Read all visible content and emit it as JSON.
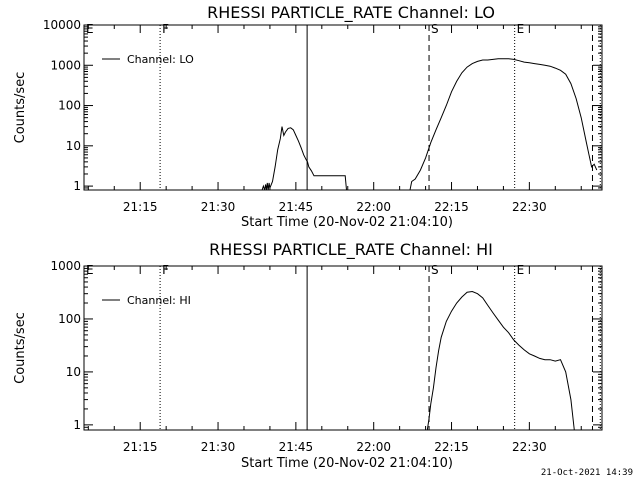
{
  "timestamp": "21-Oct-2021 14:39",
  "chart_data": [
    {
      "type": "line",
      "title": "RHESSI PARTICLE_RATE Channel: LO",
      "xlabel": "Start Time (20-Nov-02 21:04:10)",
      "ylabel": "Counts/sec",
      "yscale": "log",
      "xlim": [
        "21:04:10",
        "22:44:00"
      ],
      "ylim": [
        0.8,
        10000
      ],
      "x_ticks": [
        "21:15",
        "21:30",
        "21:45",
        "22:00",
        "22:15",
        "22:30"
      ],
      "y_ticks": [
        "1",
        "10",
        "100",
        "1000",
        "10000"
      ],
      "legend": {
        "position": "top-left",
        "entries": [
          "Channel: LO"
        ]
      },
      "series": [
        {
          "name": "Channel: LO",
          "segments": [
            [
              [
                "21:38:30",
                0.8
              ],
              [
                "21:38:45",
                1
              ],
              [
                "21:39:00",
                0.8
              ],
              [
                "21:39:10",
                1.1
              ],
              [
                "21:39:20",
                0.8
              ],
              [
                "21:39:30",
                1.2
              ],
              [
                "21:39:40",
                0.8
              ],
              [
                "21:39:50",
                1.2
              ],
              [
                "21:40:00",
                0.9
              ],
              [
                "21:40:30",
                1.3
              ],
              [
                "21:41:00",
                3
              ],
              [
                "21:41:30",
                8
              ],
              [
                "21:42:00",
                15
              ],
              [
                "21:42:20",
                30
              ],
              [
                "21:42:40",
                18
              ],
              [
                "21:43:00",
                22
              ],
              [
                "21:43:30",
                27
              ],
              [
                "21:44:00",
                28
              ],
              [
                "21:44:30",
                25
              ],
              [
                "21:45:00",
                18
              ],
              [
                "21:45:30",
                13
              ],
              [
                "21:46:00",
                9
              ],
              [
                "21:46:30",
                6
              ],
              [
                "21:47:00",
                4.5
              ],
              [
                "21:47:15",
                4
              ],
              [
                "21:47:30",
                3
              ],
              [
                "21:48:00",
                2.4
              ],
              [
                "21:48:30",
                1.8
              ],
              [
                "21:49:00",
                1.8
              ],
              [
                "21:54:30",
                1.8
              ],
              [
                "21:54:45",
                0.8
              ]
            ],
            [
              [
                "22:07:00",
                0.8
              ],
              [
                "22:07:20",
                1.3
              ],
              [
                "22:08:00",
                1.5
              ],
              [
                "22:09:00",
                2.5
              ],
              [
                "22:10:00",
                5
              ],
              [
                "22:11:00",
                12
              ],
              [
                "22:12:00",
                25
              ],
              [
                "22:13:00",
                50
              ],
              [
                "22:14:00",
                100
              ],
              [
                "22:15:00",
                220
              ],
              [
                "22:16:00",
                400
              ],
              [
                "22:17:00",
                650
              ],
              [
                "22:18:00",
                900
              ],
              [
                "22:19:00",
                1100
              ],
              [
                "22:20:00",
                1250
              ],
              [
                "22:21:00",
                1350
              ],
              [
                "22:22:00",
                1350
              ],
              [
                "22:23:00",
                1400
              ],
              [
                "22:24:00",
                1450
              ],
              [
                "22:25:00",
                1450
              ],
              [
                "22:26:00",
                1450
              ],
              [
                "22:27:00",
                1400
              ],
              [
                "22:28:00",
                1300
              ],
              [
                "22:29:00",
                1200
              ],
              [
                "22:30:00",
                1150
              ],
              [
                "22:31:00",
                1100
              ],
              [
                "22:32:00",
                1050
              ],
              [
                "22:33:00",
                1000
              ],
              [
                "22:34:00",
                950
              ],
              [
                "22:35:00",
                850
              ],
              [
                "22:36:00",
                750
              ],
              [
                "22:37:00",
                600
              ],
              [
                "22:38:00",
                350
              ],
              [
                "22:39:00",
                150
              ],
              [
                "22:40:00",
                50
              ],
              [
                "22:41:00",
                12
              ],
              [
                "22:41:30",
                6
              ],
              [
                "22:42:00",
                3
              ],
              [
                "22:42:30",
                3.5
              ],
              [
                "22:43:00",
                2.5
              ]
            ]
          ]
        }
      ],
      "markers": [
        {
          "label": "E",
          "time": "21:04:10",
          "style": "dotted"
        },
        {
          "label": "F",
          "time": "21:18:50",
          "style": "dotted"
        },
        {
          "label": "",
          "time": "21:47:10",
          "style": "solid"
        },
        {
          "label": "S",
          "time": "22:10:40",
          "style": "dashed"
        },
        {
          "label": "E",
          "time": "22:27:10",
          "style": "dotted"
        },
        {
          "label": "",
          "time": "22:42:10",
          "style": "dashed"
        },
        {
          "label": "",
          "time": "22:43:40",
          "style": "dotted"
        }
      ]
    },
    {
      "type": "line",
      "title": "RHESSI PARTICLE_RATE Channel: HI",
      "xlabel": "Start Time (20-Nov-02 21:04:10)",
      "ylabel": "Counts/sec",
      "yscale": "log",
      "xlim": [
        "21:04:10",
        "22:44:00"
      ],
      "ylim": [
        0.8,
        1000
      ],
      "x_ticks": [
        "21:15",
        "21:30",
        "21:45",
        "22:00",
        "22:15",
        "22:30"
      ],
      "y_ticks": [
        "1",
        "10",
        "100",
        "1000"
      ],
      "legend": {
        "position": "top-left",
        "entries": [
          "Channel: HI"
        ]
      },
      "series": [
        {
          "name": "Channel: HI",
          "segments": [
            [
              [
                "22:10:20",
                0.8
              ],
              [
                "22:10:40",
                1.3
              ],
              [
                "22:11:00",
                2.5
              ],
              [
                "22:11:30",
                5
              ],
              [
                "22:12:00",
                12
              ],
              [
                "22:12:30",
                25
              ],
              [
                "22:13:00",
                45
              ],
              [
                "22:14:00",
                90
              ],
              [
                "22:15:00",
                140
              ],
              [
                "22:16:00",
                200
              ],
              [
                "22:17:00",
                260
              ],
              [
                "22:18:00",
                320
              ],
              [
                "22:19:00",
                330
              ],
              [
                "22:20:00",
                300
              ],
              [
                "22:21:00",
                250
              ],
              [
                "22:22:00",
                180
              ],
              [
                "22:23:00",
                130
              ],
              [
                "22:24:00",
                95
              ],
              [
                "22:25:00",
                70
              ],
              [
                "22:26:00",
                55
              ],
              [
                "22:27:00",
                40
              ],
              [
                "22:28:00",
                32
              ],
              [
                "22:29:00",
                26
              ],
              [
                "22:30:00",
                22
              ],
              [
                "22:31:00",
                20
              ],
              [
                "22:32:00",
                18
              ],
              [
                "22:33:00",
                17
              ],
              [
                "22:34:00",
                17
              ],
              [
                "22:35:00",
                16
              ],
              [
                "22:36:00",
                17
              ],
              [
                "22:37:00",
                10
              ],
              [
                "22:38:00",
                3
              ],
              [
                "22:38:40",
                0.8
              ]
            ]
          ]
        }
      ],
      "markers": [
        {
          "label": "E",
          "time": "21:04:10",
          "style": "dotted"
        },
        {
          "label": "F",
          "time": "21:18:50",
          "style": "dotted"
        },
        {
          "label": "",
          "time": "21:47:10",
          "style": "solid"
        },
        {
          "label": "S",
          "time": "22:10:40",
          "style": "dashed"
        },
        {
          "label": "E",
          "time": "22:27:10",
          "style": "dotted"
        },
        {
          "label": "",
          "time": "22:42:10",
          "style": "dashed"
        },
        {
          "label": "",
          "time": "22:43:40",
          "style": "dotted"
        }
      ]
    }
  ]
}
